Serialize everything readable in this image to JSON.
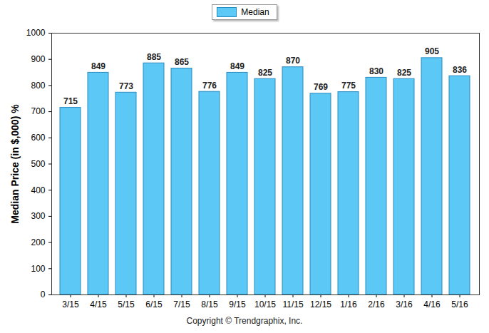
{
  "chart_data": {
    "type": "bar",
    "y_label": "Median Price (in $,000) %",
    "caption": "Copyright © Trendgraphix, Inc.",
    "categories": [
      "3/15",
      "4/15",
      "5/15",
      "6/15",
      "7/15",
      "8/15",
      "9/15",
      "10/15",
      "11/15",
      "12/15",
      "1/16",
      "2/16",
      "3/16",
      "4/16",
      "5/16"
    ],
    "series": [
      {
        "name": "Median",
        "color": "#5bc8f6",
        "values": [
          715,
          849,
          773,
          885,
          865,
          776,
          849,
          825,
          870,
          769,
          775,
          830,
          825,
          905,
          836
        ]
      }
    ],
    "ylim": [
      0,
      1000
    ],
    "yticks": [
      0,
      100,
      200,
      300,
      400,
      500,
      600,
      700,
      800,
      900,
      1000
    ],
    "grid": false,
    "legend": "top",
    "data_labels": true
  }
}
